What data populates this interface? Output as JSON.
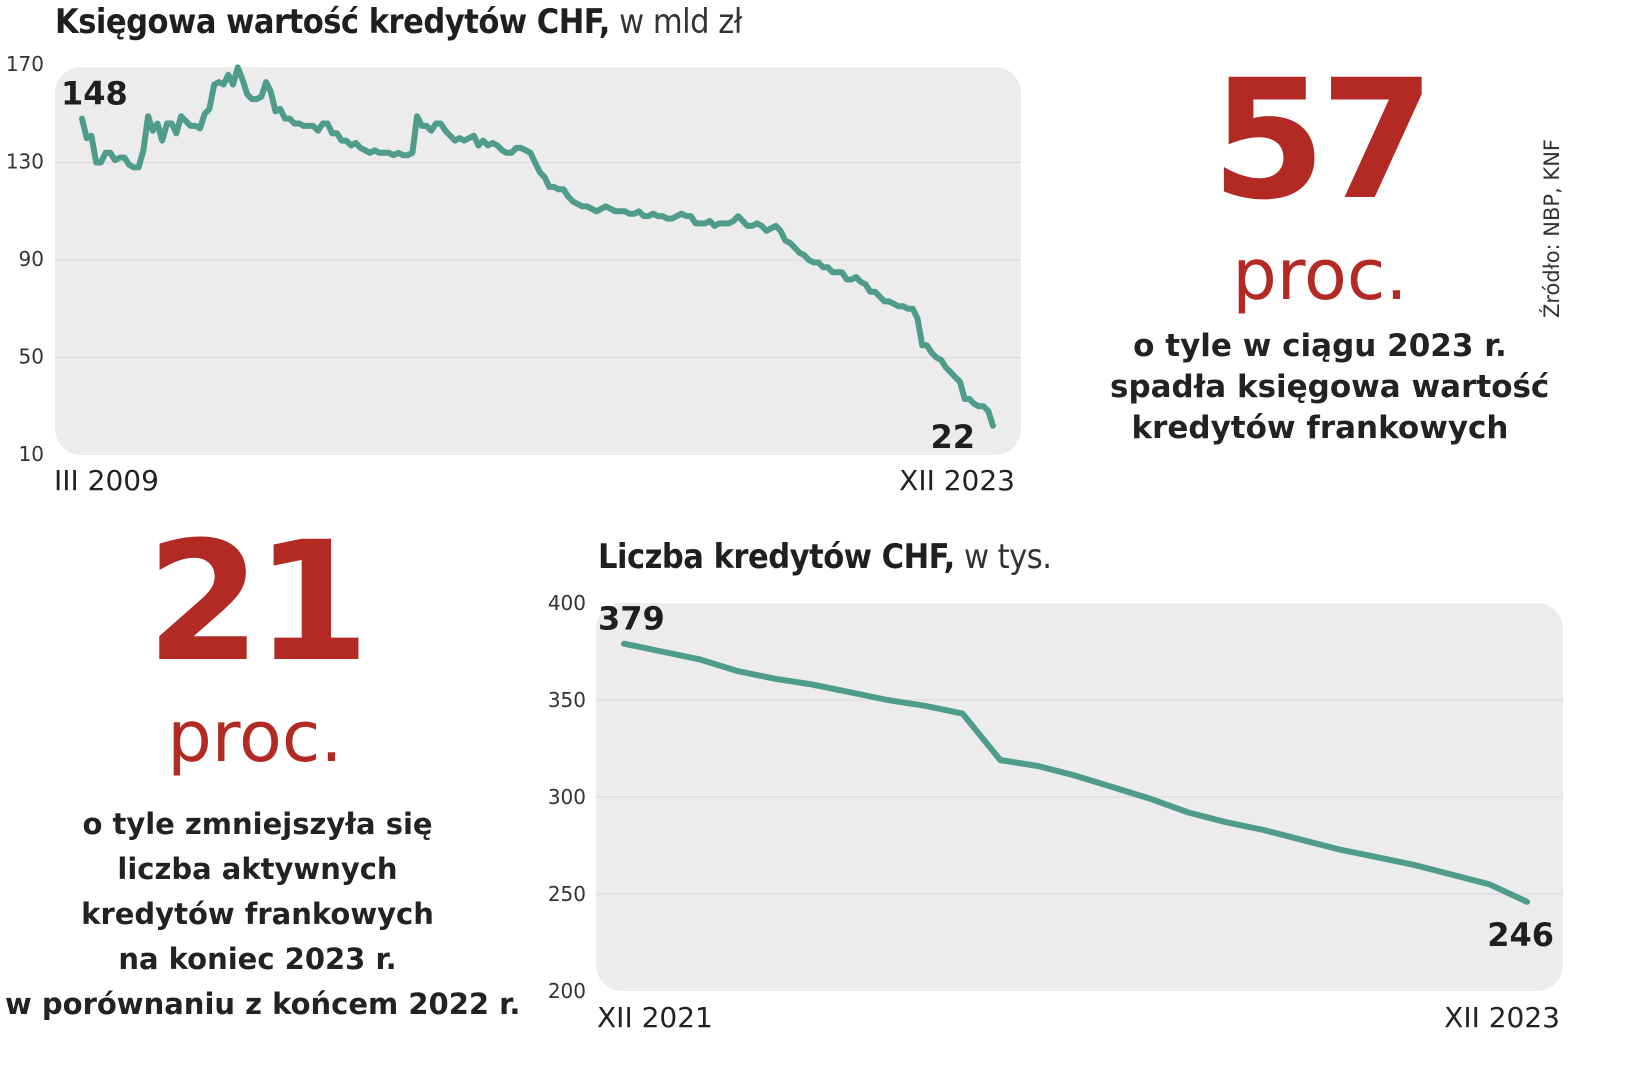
{
  "source": "Źródło: NBP, KNF",
  "chart1": {
    "title": "Księgowa wartość kredytów CHF,",
    "unit": " w mld zł"
  },
  "stat1": {
    "value": "57",
    "unit": "proc.",
    "lines": [
      "o tyle w ciągu 2023 r.",
      "spadła księgowa wartość",
      "kredytów frankowych"
    ]
  },
  "chart2": {
    "title": "Liczba kredytów CHF,",
    "unit": " w tys."
  },
  "stat2": {
    "value": "21",
    "unit": "proc.",
    "lines": [
      "o tyle zmniejszyła się",
      "liczba aktywnych",
      "kredytów frankowych",
      "na koniec 2023 r.",
      "w porównaniu z końcem 2022 r."
    ]
  },
  "colors": {
    "line": "#4f9c8b",
    "accent": "#b32a24",
    "panel": "#ececec"
  },
  "chart_data": [
    {
      "type": "line",
      "title": "Księgowa wartość kredytów CHF, w mld zł",
      "ylim": [
        10,
        170
      ],
      "yticks": [
        170,
        130,
        90,
        50,
        10
      ],
      "x_labels": [
        "III 2009",
        "XII 2023"
      ],
      "start_label": "148",
      "end_label": "22",
      "grid": true,
      "series": [
        {
          "values": [
            148,
            140,
            141,
            130,
            130,
            134,
            134,
            131,
            132,
            132,
            129,
            128,
            128,
            135,
            149,
            143,
            146,
            139,
            146,
            146,
            142,
            149,
            147,
            145,
            145,
            144,
            150,
            152,
            162,
            163,
            162,
            166,
            162,
            169,
            164,
            158,
            156,
            156,
            157,
            163,
            159,
            151,
            152,
            148,
            148,
            146,
            146,
            145,
            145,
            145,
            143,
            146,
            146,
            142,
            142,
            139,
            139,
            137,
            138,
            136,
            135,
            134,
            135,
            134,
            134,
            134,
            133,
            134,
            133,
            133,
            134,
            149,
            145,
            145,
            143,
            146,
            146,
            143,
            141,
            139,
            140,
            139,
            140,
            141,
            137,
            139,
            137,
            138,
            137,
            135,
            134,
            134,
            136,
            136,
            135,
            134,
            130,
            126,
            124,
            120,
            120,
            119,
            119,
            116,
            114,
            113,
            112,
            112,
            111,
            110,
            111,
            112,
            111,
            110,
            110,
            110,
            109,
            109,
            110,
            108,
            108,
            109,
            108,
            108,
            107,
            107,
            108,
            109,
            108,
            108,
            105,
            105,
            105,
            106,
            104,
            105,
            105,
            105,
            106,
            108,
            106,
            104,
            104,
            105,
            104,
            102,
            103,
            104,
            102,
            98,
            97,
            95,
            93,
            92,
            90,
            89,
            89,
            87,
            87,
            85,
            85,
            85,
            82,
            82,
            83,
            81,
            80,
            77,
            77,
            75,
            73,
            73,
            72,
            71,
            71,
            70,
            70,
            66,
            55,
            55,
            52,
            50,
            49,
            46,
            44,
            42,
            40,
            33,
            33,
            31,
            30,
            30,
            28,
            22
          ]
        }
      ]
    },
    {
      "type": "line",
      "title": "Liczba kredytów CHF, w tys.",
      "ylim": [
        200,
        400
      ],
      "yticks": [
        400,
        350,
        300,
        250,
        200
      ],
      "x_labels": [
        "XII 2021",
        "XII 2023"
      ],
      "start_label": "379",
      "end_label": "246",
      "grid": true,
      "series": [
        {
          "values": [
            379,
            375,
            371,
            365,
            361,
            358,
            354,
            350,
            347,
            343,
            319,
            316,
            311,
            305,
            299,
            292,
            287,
            283,
            278,
            273,
            269,
            265,
            260,
            255,
            246
          ]
        }
      ]
    }
  ]
}
